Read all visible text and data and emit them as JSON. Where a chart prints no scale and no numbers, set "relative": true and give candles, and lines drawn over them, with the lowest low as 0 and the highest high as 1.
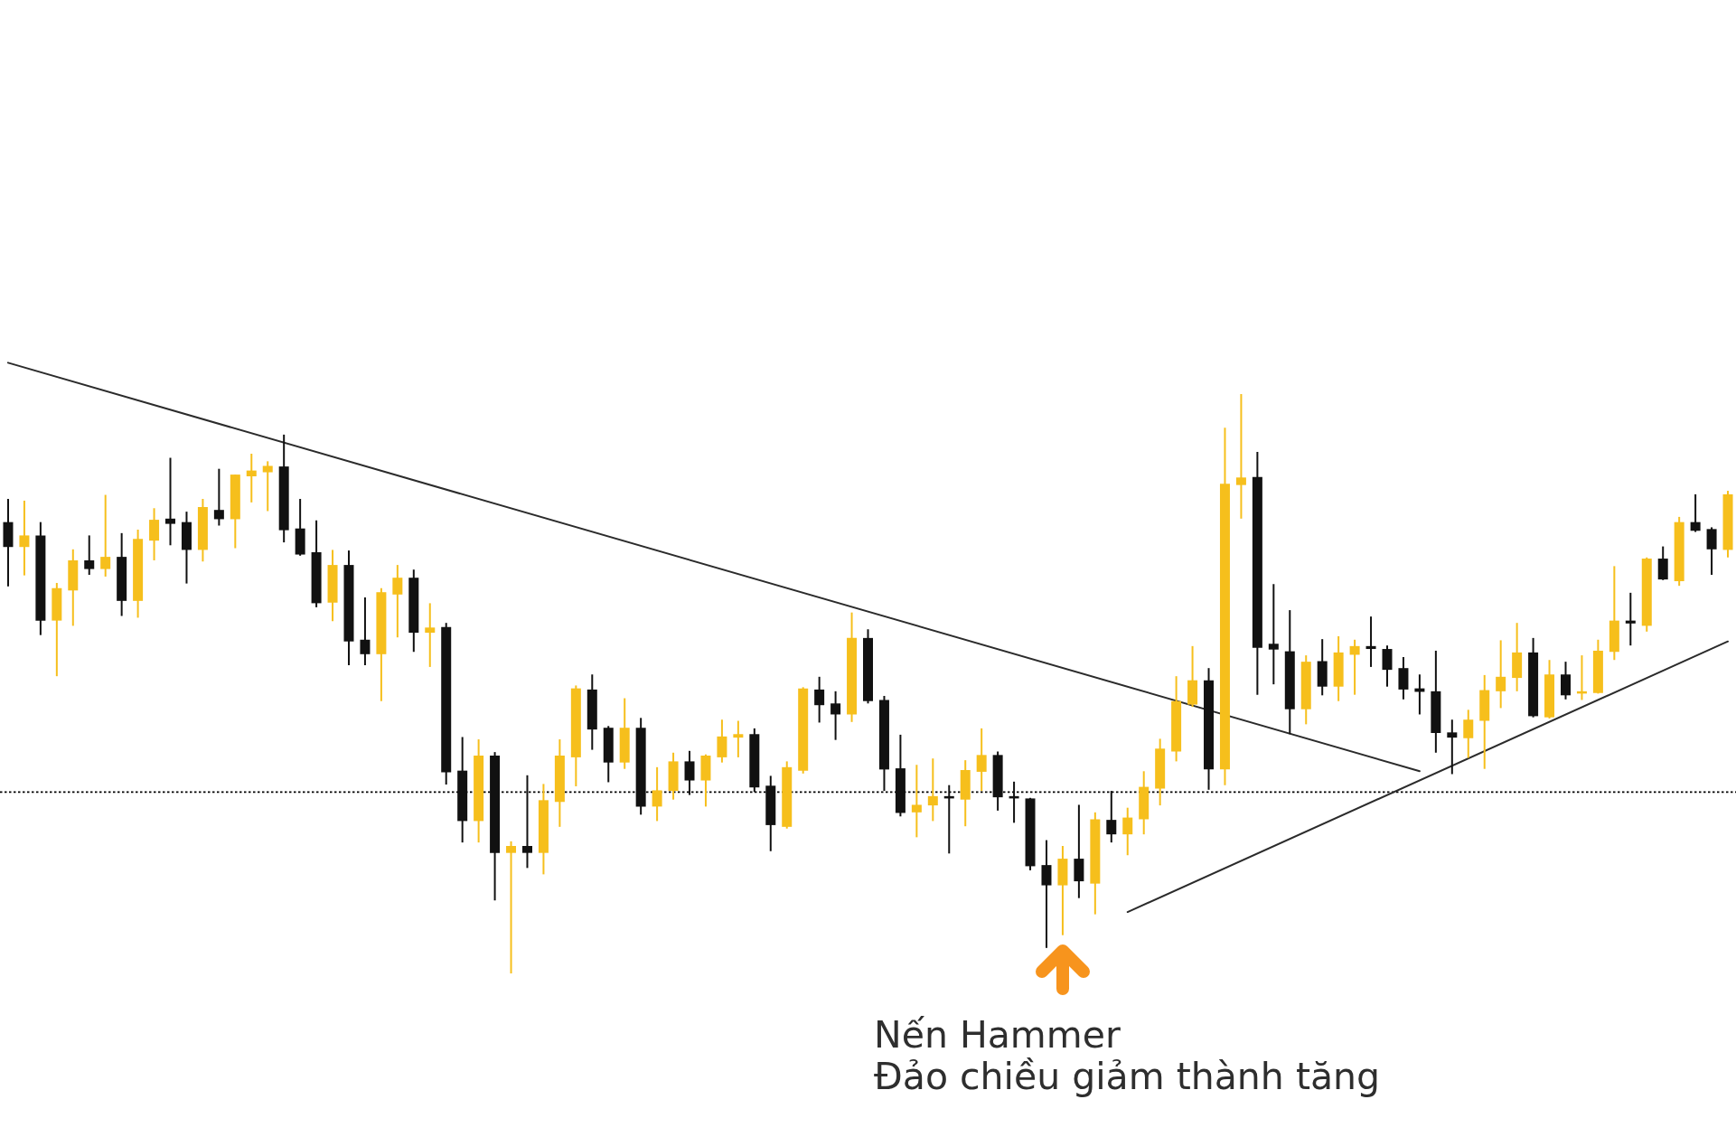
{
  "chart_data": {
    "type": "candlestick",
    "relative": true,
    "categories": [
      null,
      null,
      null,
      null,
      null,
      null,
      null,
      null,
      null,
      null,
      null,
      null,
      null,
      null,
      null,
      null,
      null,
      null,
      null,
      null,
      null,
      null,
      null,
      null,
      null,
      null,
      null,
      null,
      null,
      null,
      null,
      null,
      null,
      null,
      null,
      null,
      null,
      null,
      null,
      null,
      null,
      null,
      null,
      null,
      null,
      null,
      null,
      null,
      null,
      null,
      null,
      null,
      null,
      null,
      null,
      null,
      null,
      null,
      null,
      null,
      null,
      null,
      null,
      null,
      null,
      null,
      null,
      null,
      null,
      null,
      null,
      null,
      null,
      null,
      null,
      null,
      null,
      null,
      null,
      null,
      null,
      null,
      null,
      null,
      null,
      null,
      null,
      null,
      null,
      null,
      null,
      null,
      null,
      null,
      null,
      null,
      null,
      null,
      null,
      null,
      null,
      null,
      null,
      null,
      null,
      null,
      null
    ],
    "ohlc": [
      [
        0.779,
        0.819,
        0.668,
        0.736
      ],
      [
        0.736,
        0.816,
        0.687,
        0.756
      ],
      [
        0.756,
        0.779,
        0.584,
        0.609
      ],
      [
        0.609,
        0.674,
        0.513,
        0.665
      ],
      [
        0.661,
        0.732,
        0.6,
        0.713
      ],
      [
        0.713,
        0.756,
        0.688,
        0.698
      ],
      [
        0.698,
        0.826,
        0.685,
        0.719
      ],
      [
        0.719,
        0.76,
        0.617,
        0.643
      ],
      [
        0.643,
        0.766,
        0.614,
        0.75
      ],
      [
        0.747,
        0.803,
        0.713,
        0.783
      ],
      [
        0.785,
        0.89,
        0.739,
        0.776
      ],
      [
        0.779,
        0.797,
        0.673,
        0.731
      ],
      [
        0.731,
        0.819,
        0.711,
        0.805
      ],
      [
        0.8,
        0.871,
        0.773,
        0.784
      ],
      [
        0.784,
        0.861,
        0.734,
        0.861
      ],
      [
        0.858,
        0.897,
        0.813,
        0.868
      ],
      [
        0.865,
        0.884,
        0.798,
        0.876
      ],
      [
        0.875,
        0.93,
        0.744,
        0.765
      ],
      [
        0.768,
        0.819,
        0.721,
        0.723
      ],
      [
        0.727,
        0.782,
        0.632,
        0.639
      ],
      [
        0.64,
        0.731,
        0.608,
        0.705
      ],
      [
        0.705,
        0.73,
        0.532,
        0.573
      ],
      [
        0.576,
        0.649,
        0.532,
        0.551
      ],
      [
        0.551,
        0.665,
        0.47,
        0.658
      ],
      [
        0.654,
        0.705,
        0.58,
        0.683
      ],
      [
        0.683,
        0.697,
        0.555,
        0.588
      ],
      [
        0.588,
        0.639,
        0.529,
        0.597
      ],
      [
        0.598,
        0.605,
        0.326,
        0.347
      ],
      [
        0.35,
        0.408,
        0.226,
        0.263
      ],
      [
        0.263,
        0.404,
        0.226,
        0.376
      ],
      [
        0.376,
        0.382,
        0.126,
        0.208
      ],
      [
        0.208,
        0.228,
        0,
        0.22
      ],
      [
        0.22,
        0.342,
        0.182,
        0.208
      ],
      [
        0.208,
        0.327,
        0.171,
        0.299
      ],
      [
        0.296,
        0.404,
        0.253,
        0.376
      ],
      [
        0.373,
        0.497,
        0.323,
        0.492
      ],
      [
        0.49,
        0.516,
        0.386,
        0.421
      ],
      [
        0.424,
        0.427,
        0.33,
        0.364
      ],
      [
        0.364,
        0.475,
        0.353,
        0.424
      ],
      [
        0.424,
        0.441,
        0.274,
        0.288
      ],
      [
        0.288,
        0.356,
        0.263,
        0.316
      ],
      [
        0.315,
        0.381,
        0.3,
        0.366
      ],
      [
        0.366,
        0.384,
        0.308,
        0.333
      ],
      [
        0.333,
        0.378,
        0.288,
        0.376
      ],
      [
        0.373,
        0.438,
        0.364,
        0.409
      ],
      [
        0.407,
        0.436,
        0.373,
        0.413
      ],
      [
        0.413,
        0.423,
        0.313,
        0.321
      ],
      [
        0.324,
        0.341,
        0.211,
        0.256
      ],
      [
        0.253,
        0.366,
        0.25,
        0.356
      ],
      [
        0.35,
        0.494,
        0.345,
        0.492
      ],
      [
        0.49,
        0.512,
        0.433,
        0.463
      ],
      [
        0.466,
        0.487,
        0.403,
        0.447
      ],
      [
        0.447,
        0.623,
        0.434,
        0.579
      ],
      [
        0.579,
        0.594,
        0.466,
        0.47
      ],
      [
        0.472,
        0.479,
        0.315,
        0.352
      ],
      [
        0.354,
        0.412,
        0.271,
        0.277
      ],
      [
        0.278,
        0.36,
        0.235,
        0.291
      ],
      [
        0.29,
        0.371,
        0.263,
        0.306
      ],
      [
        0.306,
        0.325,
        0.207,
        0.302
      ],
      [
        0.3,
        0.368,
        0.254,
        0.351
      ],
      [
        0.348,
        0.423,
        0.315,
        0.377
      ],
      [
        0.377,
        0.383,
        0.281,
        0.304
      ],
      [
        0.306,
        0.331,
        0.26,
        0.302
      ],
      [
        0.302,
        0.303,
        0.178,
        0.185
      ],
      [
        0.187,
        0.23,
        0.044,
        0.152
      ],
      [
        0.152,
        0.22,
        0.066,
        0.198
      ],
      [
        0.198,
        0.291,
        0.13,
        0.159
      ],
      [
        0.155,
        0.278,
        0.102,
        0.266
      ],
      [
        0.265,
        0.315,
        0.226,
        0.24
      ],
      [
        0.24,
        0.286,
        0.204,
        0.269
      ],
      [
        0.266,
        0.349,
        0.24,
        0.322
      ],
      [
        0.319,
        0.405,
        0.29,
        0.388
      ],
      [
        0.383,
        0.513,
        0.366,
        0.47
      ],
      [
        0.464,
        0.565,
        0.46,
        0.506
      ],
      [
        0.506,
        0.527,
        0.317,
        0.352
      ],
      [
        0.352,
        0.942,
        0.325,
        0.845
      ],
      [
        0.843,
        1,
        0.785,
        0.856
      ],
      [
        0.857,
        0.9,
        0.481,
        0.562
      ],
      [
        0.569,
        0.672,
        0.499,
        0.559
      ],
      [
        0.556,
        0.627,
        0.413,
        0.456
      ],
      [
        0.456,
        0.549,
        0.43,
        0.538
      ],
      [
        0.539,
        0.577,
        0.48,
        0.495
      ],
      [
        0.495,
        0.582,
        0.47,
        0.554
      ],
      [
        0.55,
        0.576,
        0.481,
        0.565
      ],
      [
        0.565,
        0.616,
        0.529,
        0.56
      ],
      [
        0.56,
        0.566,
        0.495,
        0.524
      ],
      [
        0.527,
        0.546,
        0.473,
        0.49
      ],
      [
        0.492,
        0.516,
        0.447,
        0.486
      ],
      [
        0.487,
        0.557,
        0.381,
        0.415
      ],
      [
        0.416,
        0.438,
        0.344,
        0.407
      ],
      [
        0.406,
        0.455,
        0.372,
        0.438
      ],
      [
        0.436,
        0.515,
        0.353,
        0.489
      ],
      [
        0.487,
        0.575,
        0.458,
        0.512
      ],
      [
        0.51,
        0.605,
        0.487,
        0.554
      ],
      [
        0.554,
        0.579,
        0.442,
        0.444
      ],
      [
        0.442,
        0.541,
        0.44,
        0.516
      ],
      [
        0.516,
        0.538,
        0.473,
        0.48
      ],
      [
        0.483,
        0.549,
        0.472,
        0.487
      ],
      [
        0.484,
        0.576,
        0.483,
        0.557
      ],
      [
        0.555,
        0.703,
        0.541,
        0.609
      ],
      [
        0.609,
        0.657,
        0.566,
        0.604
      ],
      [
        0.6,
        0.718,
        0.59,
        0.716
      ],
      [
        0.716,
        0.737,
        0.679,
        0.68
      ],
      [
        0.677,
        0.788,
        0.669,
        0.779
      ],
      [
        0.779,
        0.827,
        0.762,
        0.764
      ],
      [
        0.767,
        0.77,
        0.688,
        0.732
      ],
      [
        0.731,
        0.833,
        0.718,
        0.827
      ]
    ],
    "colors": [
      "#111111",
      "#f6bf1c",
      "#111111",
      "#f6bf1c",
      "#f6bf1c",
      "#111111",
      "#f6bf1c",
      "#111111",
      "#f6bf1c",
      "#f6bf1c",
      "#111111",
      "#111111",
      "#f6bf1c",
      "#111111",
      "#f6bf1c",
      "#f6bf1c",
      "#f6bf1c",
      "#111111",
      "#111111",
      "#111111",
      "#f6bf1c",
      "#111111",
      "#111111",
      "#f6bf1c",
      "#f6bf1c",
      "#111111",
      "#f6bf1c",
      "#111111",
      "#111111",
      "#f6bf1c",
      "#111111",
      "#f6bf1c",
      "#111111",
      "#f6bf1c",
      "#f6bf1c",
      "#f6bf1c",
      "#111111",
      "#111111",
      "#f6bf1c",
      "#111111",
      "#f6bf1c",
      "#f6bf1c",
      "#111111",
      "#f6bf1c",
      "#f6bf1c",
      "#f6bf1c",
      "#111111",
      "#111111",
      "#f6bf1c",
      "#f6bf1c",
      "#111111",
      "#111111",
      "#f6bf1c",
      "#111111",
      "#111111",
      "#111111",
      "#f6bf1c",
      "#f6bf1c",
      "#111111",
      "#f6bf1c",
      "#f6bf1c",
      "#111111",
      "#111111",
      "#111111",
      "#111111",
      "#f6bf1c",
      "#111111",
      "#f6bf1c",
      "#111111",
      "#f6bf1c",
      "#f6bf1c",
      "#f6bf1c",
      "#f6bf1c",
      "#f6bf1c",
      "#111111",
      "#f6bf1c",
      "#f6bf1c",
      "#111111",
      "#111111",
      "#111111",
      "#f6bf1c",
      "#111111",
      "#f6bf1c",
      "#f6bf1c",
      "#111111",
      "#111111",
      "#111111",
      "#111111",
      "#111111",
      "#111111",
      "#f6bf1c",
      "#f6bf1c",
      "#f6bf1c",
      "#f6bf1c",
      "#111111",
      "#f6bf1c",
      "#111111",
      "#f6bf1c",
      "#f6bf1c",
      "#f6bf1c",
      "#111111",
      "#f6bf1c",
      "#111111",
      "#f6bf1c",
      "#111111",
      "#111111",
      "#f6bf1c"
    ],
    "series": [
      {
        "type": "line",
        "color": "#2b2b2b",
        "values": [
          1.054,
          null,
          null,
          null,
          null,
          null,
          null,
          null,
          null,
          null,
          null,
          null,
          null,
          null,
          null,
          null,
          null,
          null,
          null,
          null,
          null,
          null,
          null,
          null,
          null,
          null,
          null,
          null,
          null,
          null,
          null,
          null,
          null,
          null,
          null,
          null,
          null,
          null,
          null,
          null,
          null,
          null,
          null,
          null,
          null,
          null,
          null,
          null,
          null,
          null,
          null,
          null,
          null,
          null,
          null,
          null,
          null,
          null,
          null,
          null,
          null,
          null,
          null,
          null,
          null,
          null,
          null,
          null,
          null,
          null,
          null,
          null,
          null,
          null,
          null,
          null,
          null,
          null,
          null,
          null,
          null,
          null,
          null,
          null,
          null,
          null,
          null,
          0.349,
          null,
          null,
          null,
          null,
          null,
          null,
          null,
          null,
          null,
          null,
          null,
          null,
          null,
          null,
          null,
          null,
          null,
          null,
          null
        ]
      },
      {
        "type": "line",
        "color": "#2b2b2b",
        "values": [
          null,
          null,
          null,
          null,
          null,
          null,
          null,
          null,
          null,
          null,
          null,
          null,
          null,
          null,
          null,
          null,
          null,
          null,
          null,
          null,
          null,
          null,
          null,
          null,
          null,
          null,
          null,
          null,
          null,
          null,
          null,
          null,
          null,
          null,
          null,
          null,
          null,
          null,
          null,
          null,
          null,
          null,
          null,
          null,
          null,
          null,
          null,
          null,
          null,
          null,
          null,
          null,
          null,
          null,
          null,
          null,
          null,
          null,
          null,
          null,
          null,
          null,
          null,
          null,
          null,
          null,
          null,
          null,
          null,
          0.106,
          null,
          null,
          null,
          null,
          null,
          null,
          null,
          null,
          null,
          null,
          null,
          null,
          null,
          null,
          null,
          null,
          null,
          null,
          null,
          null,
          null,
          null,
          null,
          null,
          null,
          null,
          null,
          null,
          null,
          null,
          null,
          null,
          null,
          null,
          null,
          null,
          0.573
        ]
      }
    ],
    "ref_lines": [
      {
        "axis": "y",
        "value": 0.313,
        "line_style": "dotted",
        "color": "#000000"
      }
    ],
    "annotations": [
      "Nến Hammer",
      "Đảo chiều giảm thành tăng"
    ]
  }
}
